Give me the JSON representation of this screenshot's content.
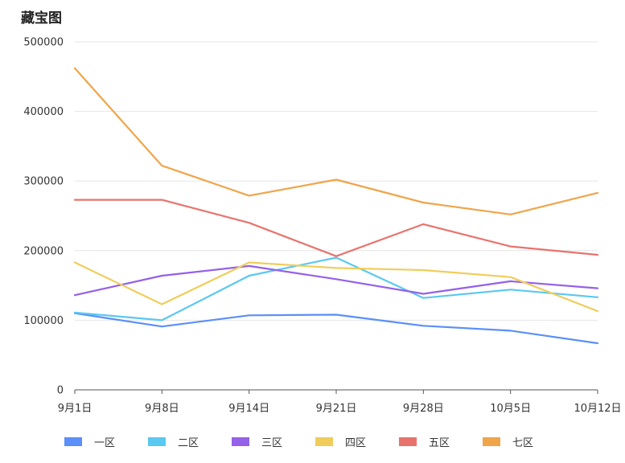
{
  "chart_data": {
    "type": "line",
    "title": "藏宝图",
    "categories": [
      "9月1日",
      "9月8日",
      "9月14日",
      "9月21日",
      "9月28日",
      "10月5日",
      "10月12日"
    ],
    "ylim": [
      0,
      500000
    ],
    "yticks": [
      0,
      100000,
      200000,
      300000,
      400000,
      500000
    ],
    "grid": true,
    "legend": "bottom",
    "series": [
      {
        "name": "一区",
        "color": "#5b8ff9",
        "values": [
          110000,
          91000,
          107000,
          108000,
          92000,
          85000,
          67000
        ]
      },
      {
        "name": "二区",
        "color": "#5ac8f0",
        "values": [
          111000,
          100000,
          164000,
          190000,
          132000,
          144000,
          133000
        ]
      },
      {
        "name": "三区",
        "color": "#9461e8",
        "values": [
          136000,
          164000,
          178000,
          159000,
          138000,
          156000,
          146000
        ]
      },
      {
        "name": "四区",
        "color": "#f0cd5a",
        "values": [
          183000,
          123000,
          183000,
          175000,
          172000,
          162000,
          113000
        ]
      },
      {
        "name": "五区",
        "color": "#e8736d",
        "values": [
          273000,
          273000,
          240000,
          192000,
          238000,
          206000,
          194000
        ]
      },
      {
        "name": "七区",
        "color": "#f0a54a",
        "values": [
          462000,
          322000,
          279000,
          302000,
          269000,
          252000,
          283000
        ]
      }
    ]
  }
}
